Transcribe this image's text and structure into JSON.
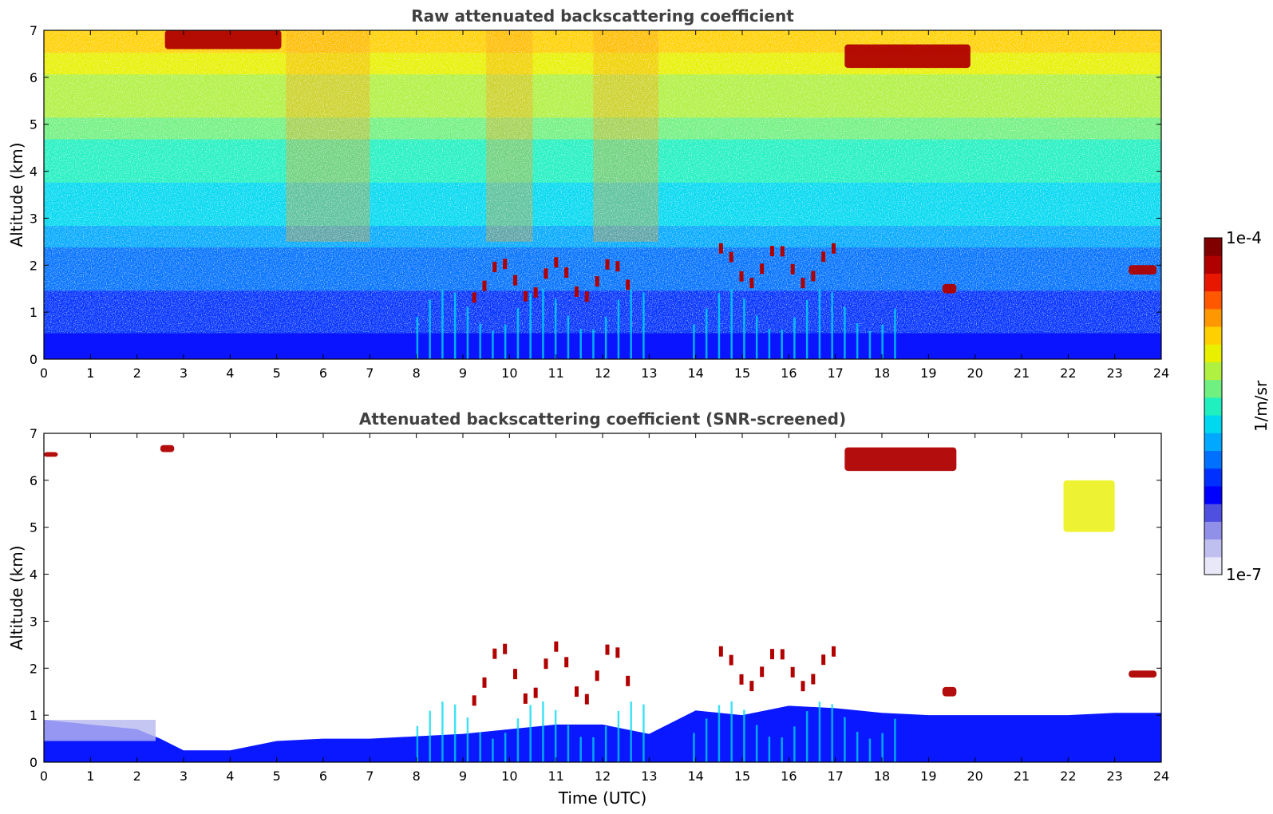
{
  "chart_data": [
    {
      "type": "heatmap",
      "title": "Raw attenuated backscattering coefficient",
      "xlabel": "",
      "ylabel": "Altitude (km)",
      "xlim": [
        0,
        24
      ],
      "ylim": [
        0,
        7
      ],
      "x_ticks": [
        "0",
        "1",
        "2",
        "3",
        "4",
        "5",
        "6",
        "7",
        "8",
        "9",
        "10",
        "11",
        "12",
        "13",
        "14",
        "15",
        "16",
        "17",
        "18",
        "19",
        "20",
        "21",
        "22",
        "23",
        "24"
      ],
      "y_ticks": [
        "0",
        "1",
        "2",
        "3",
        "4",
        "5",
        "6",
        "7"
      ],
      "features": [
        {
          "kind": "noise_field",
          "description": "noisy signal increasing in intensity with altitude",
          "x_range": [
            0,
            24
          ],
          "y_range": [
            0,
            7
          ]
        },
        {
          "kind": "boundary_layer",
          "x_range": [
            0,
            24
          ],
          "y_range": [
            0,
            0.55
          ],
          "level": "low"
        },
        {
          "kind": "cloud",
          "x_range": [
            2.6,
            5.1
          ],
          "y_range": [
            6.6,
            7.0
          ],
          "level": "high"
        },
        {
          "kind": "cloud",
          "x_range": [
            17.2,
            19.9
          ],
          "y_range": [
            6.2,
            6.7
          ],
          "level": "high"
        },
        {
          "kind": "cloud_fragments",
          "x_range": [
            9.2,
            12.6
          ],
          "y_range": [
            1.2,
            2.2
          ],
          "level": "high"
        },
        {
          "kind": "cloud_fragments",
          "x_range": [
            14.5,
            17.0
          ],
          "y_range": [
            1.5,
            2.5
          ],
          "level": "high"
        },
        {
          "kind": "cloud",
          "x_range": [
            19.3,
            19.6
          ],
          "y_range": [
            1.4,
            1.6
          ],
          "level": "high"
        },
        {
          "kind": "cloud",
          "x_range": [
            23.3,
            23.9
          ],
          "y_range": [
            1.8,
            2.0
          ],
          "level": "high"
        }
      ]
    },
    {
      "type": "heatmap",
      "title": "Attenuated backscattering coefficient (SNR-screened)",
      "xlabel": "Time (UTC)",
      "ylabel": "Altitude (km)",
      "xlim": [
        0,
        24
      ],
      "ylim": [
        0,
        7
      ],
      "x_ticks": [
        "0",
        "1",
        "2",
        "3",
        "4",
        "5",
        "6",
        "7",
        "8",
        "9",
        "10",
        "11",
        "12",
        "13",
        "14",
        "15",
        "16",
        "17",
        "18",
        "19",
        "20",
        "21",
        "22",
        "23",
        "24"
      ],
      "y_ticks": [
        "0",
        "1",
        "2",
        "3",
        "4",
        "5",
        "6",
        "7"
      ],
      "boundary_layer_top_km": {
        "x": [
          0,
          1,
          2,
          2.5,
          3,
          4,
          5,
          6,
          7,
          8,
          9,
          10,
          11,
          12,
          13,
          14,
          15,
          16,
          17,
          18,
          19,
          20,
          21,
          22,
          23,
          24
        ],
        "y": [
          0.9,
          0.8,
          0.7,
          0.5,
          0.25,
          0.25,
          0.45,
          0.5,
          0.5,
          0.55,
          0.6,
          0.7,
          0.8,
          0.8,
          0.6,
          1.1,
          1.0,
          1.2,
          1.15,
          1.05,
          1.0,
          1.0,
          1.0,
          1.0,
          1.05,
          1.05
        ]
      },
      "features": [
        {
          "kind": "cloud",
          "x_range": [
            0,
            0.3
          ],
          "y_range": [
            6.5,
            6.6
          ],
          "level": "high"
        },
        {
          "kind": "cloud",
          "x_range": [
            2.5,
            2.8
          ],
          "y_range": [
            6.6,
            6.75
          ],
          "level": "high"
        },
        {
          "kind": "cloud",
          "x_range": [
            17.2,
            19.6
          ],
          "y_range": [
            6.2,
            6.7
          ],
          "level": "high"
        },
        {
          "kind": "virga",
          "x_range": [
            21.9,
            23.0
          ],
          "y_range": [
            4.9,
            6.0
          ],
          "level": "mid"
        },
        {
          "kind": "cloud_fragments",
          "x_range": [
            9.2,
            12.6
          ],
          "y_range": [
            1.2,
            2.6
          ],
          "level": "high"
        },
        {
          "kind": "cloud_fragments",
          "x_range": [
            14.5,
            17.0
          ],
          "y_range": [
            1.5,
            2.5
          ],
          "level": "high"
        },
        {
          "kind": "cloud",
          "x_range": [
            19.3,
            19.6
          ],
          "y_range": [
            1.4,
            1.6
          ],
          "level": "high"
        },
        {
          "kind": "cloud",
          "x_range": [
            23.3,
            23.9
          ],
          "y_range": [
            1.8,
            1.95
          ],
          "level": "high"
        }
      ]
    }
  ],
  "colorbar": {
    "label": "1/m/sr",
    "max_label": "1e-4",
    "min_label": "1e-7",
    "colors": [
      "#e8e8f8",
      "#c0c0f0",
      "#9090e8",
      "#5050e0",
      "#0000ff",
      "#0030ff",
      "#0070ff",
      "#00a8ff",
      "#00d8f0",
      "#20f0c0",
      "#70f080",
      "#b0f040",
      "#e8f000",
      "#ffd000",
      "#ff9800",
      "#ff5800",
      "#e81800",
      "#b00000",
      "#800000"
    ]
  },
  "colors": {
    "title": "#404040",
    "text": "#000000"
  }
}
